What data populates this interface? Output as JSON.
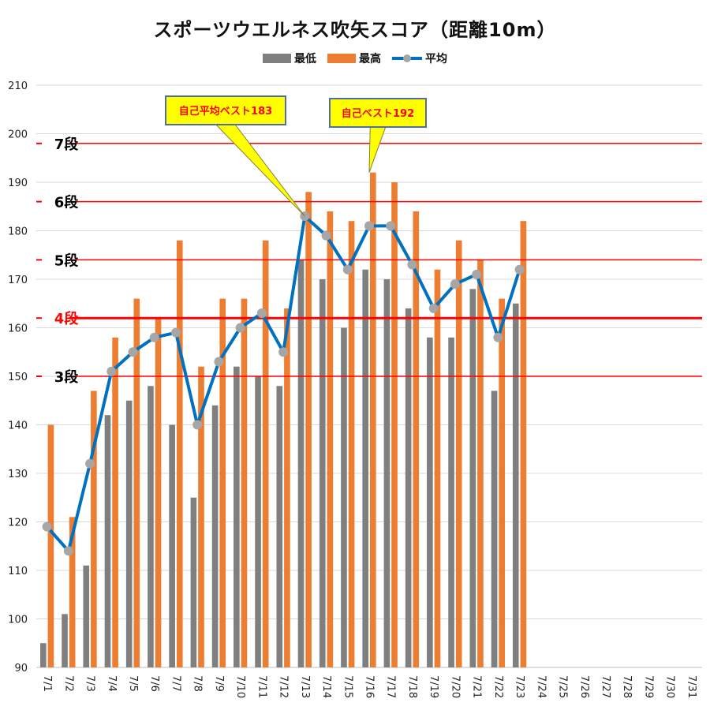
{
  "chart_data": {
    "type": "bar",
    "title": "スポーツウエルネス吹矢スコア（距離10m）",
    "categories": [
      "7/1",
      "7/2",
      "7/3",
      "7/4",
      "7/5",
      "7/6",
      "7/7",
      "7/8",
      "7/9",
      "7/10",
      "7/11",
      "7/12",
      "7/13",
      "7/14",
      "7/15",
      "7/16",
      "7/17",
      "7/18",
      "7/19",
      "7/20",
      "7/21",
      "7/22",
      "7/23",
      "7/24",
      "7/25",
      "7/26",
      "7/27",
      "7/28",
      "7/29",
      "7/30",
      "7/31"
    ],
    "ylim": [
      90,
      210
    ],
    "yticks": [
      90,
      100,
      110,
      120,
      130,
      140,
      150,
      160,
      170,
      180,
      190,
      200,
      210
    ],
    "grid": true,
    "legend_position": "top",
    "series": [
      {
        "name": "最低",
        "type": "bar",
        "color": "#7f7f7f",
        "values": [
          95,
          101,
          111,
          142,
          145,
          148,
          140,
          125,
          144,
          152,
          150,
          148,
          174,
          170,
          160,
          172,
          170,
          164,
          158,
          158,
          168,
          147,
          165,
          null,
          null,
          null,
          null,
          null,
          null,
          null,
          null
        ]
      },
      {
        "name": "最高",
        "type": "bar",
        "color": "#ed7d31",
        "values": [
          140,
          121,
          147,
          158,
          166,
          162,
          178,
          152,
          166,
          166,
          178,
          164,
          188,
          184,
          182,
          192,
          190,
          184,
          172,
          178,
          174,
          166,
          182,
          null,
          null,
          null,
          null,
          null,
          null,
          null,
          null
        ]
      },
      {
        "name": "平均",
        "type": "line",
        "color": "#0070c0",
        "marker_color": "#a6a6a6",
        "values": [
          119,
          114,
          132,
          151,
          155,
          158,
          159,
          140,
          153,
          160,
          163,
          155,
          183,
          179,
          172,
          181,
          181,
          173,
          164,
          169,
          171,
          158,
          172,
          null,
          null,
          null,
          null,
          null,
          null,
          null,
          null
        ]
      }
    ],
    "reference_lines": [
      {
        "label": "7段",
        "value": 198,
        "label_color": "#000000",
        "thick": false
      },
      {
        "label": "6段",
        "value": 186,
        "label_color": "#000000",
        "thick": false
      },
      {
        "label": "5段",
        "value": 174,
        "label_color": "#000000",
        "thick": false
      },
      {
        "label": "4段",
        "value": 162,
        "label_color": "#ff0000",
        "thick": true
      },
      {
        "label": "3段",
        "value": 150,
        "label_color": "#000000",
        "thick": false
      }
    ],
    "annotations": [
      {
        "text": "自己平均ベスト183",
        "category": "7/13",
        "value": 183
      },
      {
        "text": "自己ベスト192",
        "category": "7/16",
        "value": 192
      }
    ]
  }
}
